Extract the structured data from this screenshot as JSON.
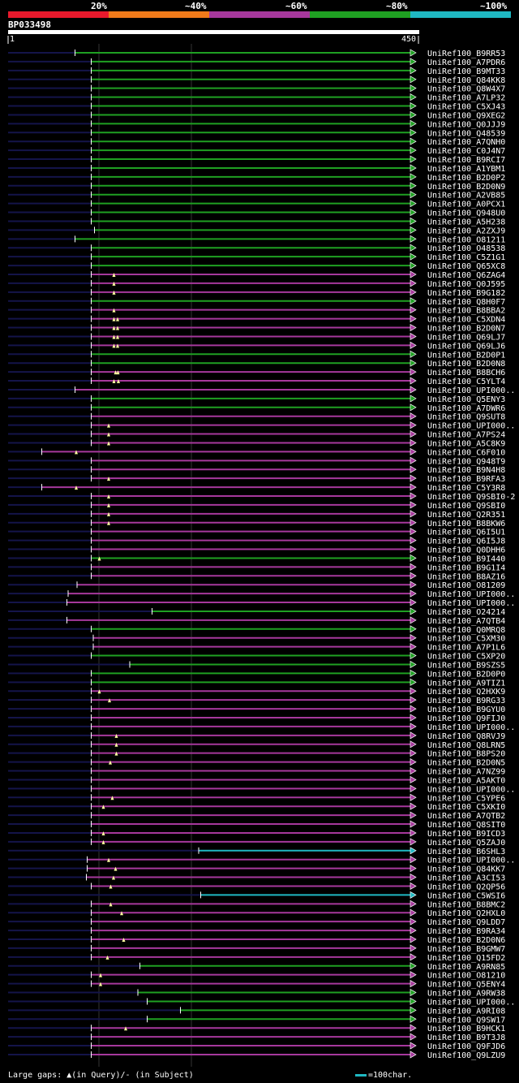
{
  "header": {
    "bands": [
      {
        "label": "20%",
        "color": "#e8192c"
      },
      {
        "label": "~40%",
        "color": "#f07a1a"
      },
      {
        "label": "~60%",
        "color": "#a6389c"
      },
      {
        "label": "~80%",
        "color": "#1fa022"
      },
      {
        "label": "~100%",
        "color": "#1fb8c2"
      }
    ],
    "query_name": "BP033498",
    "ruler_start": "1",
    "ruler_end": "450"
  },
  "footer": {
    "gaps_label": "Large gaps: ▲(in Query)/- (in Subject)",
    "scale_label": "=100char."
  },
  "chart_data": {
    "type": "alignment",
    "query_length": 450,
    "colors": {
      "green": "#1fa022",
      "magenta": "#a6389c",
      "cyan": "#1fb8c2",
      "tail": "#14144a"
    },
    "hits": [
      {
        "name": "UniRef100_B9RR53",
        "start": 165,
        "color": "green",
        "gaps": []
      },
      {
        "name": "UniRef100_A7PDR6",
        "start": 205,
        "color": "green",
        "gaps": []
      },
      {
        "name": "UniRef100_B9MT33",
        "start": 205,
        "color": "green",
        "gaps": []
      },
      {
        "name": "UniRef100_Q84KK8",
        "start": 205,
        "color": "green",
        "gaps": []
      },
      {
        "name": "UniRef100_Q8W4X7",
        "start": 205,
        "color": "green",
        "gaps": []
      },
      {
        "name": "UniRef100_A7LP32",
        "start": 205,
        "color": "green",
        "gaps": []
      },
      {
        "name": "UniRef100_C5XJ43",
        "start": 205,
        "color": "green",
        "gaps": []
      },
      {
        "name": "UniRef100_Q9XEG2",
        "start": 205,
        "color": "green",
        "gaps": []
      },
      {
        "name": "UniRef100_Q0JJJ9",
        "start": 205,
        "color": "green",
        "gaps": []
      },
      {
        "name": "UniRef100_Q48539",
        "start": 205,
        "color": "green",
        "gaps": []
      },
      {
        "name": "UniRef100_A7QNH0",
        "start": 205,
        "color": "green",
        "gaps": []
      },
      {
        "name": "UniRef100_C0J4N7",
        "start": 205,
        "color": "green",
        "gaps": []
      },
      {
        "name": "UniRef100_B9RCI7",
        "start": 205,
        "color": "green",
        "gaps": []
      },
      {
        "name": "UniRef100_A1YBM1",
        "start": 205,
        "color": "green",
        "gaps": []
      },
      {
        "name": "UniRef100_B2D0P2",
        "start": 205,
        "color": "green",
        "gaps": []
      },
      {
        "name": "UniRef100_B2D0N9",
        "start": 205,
        "color": "green",
        "gaps": []
      },
      {
        "name": "UniRef100_A2VB85",
        "start": 205,
        "color": "green",
        "gaps": []
      },
      {
        "name": "UniRef100_A0PCX1",
        "start": 205,
        "color": "green",
        "gaps": []
      },
      {
        "name": "UniRef100_Q948U0",
        "start": 205,
        "color": "green",
        "gaps": []
      },
      {
        "name": "UniRef100_A5H238",
        "start": 205,
        "color": "green",
        "gaps": []
      },
      {
        "name": "UniRef100_A2ZXJ9",
        "start": 213,
        "color": "green",
        "gaps": []
      },
      {
        "name": "UniRef100_O81211",
        "start": 165,
        "color": "green",
        "gaps": []
      },
      {
        "name": "UniRef100_O48538",
        "start": 205,
        "color": "green",
        "gaps": []
      },
      {
        "name": "UniRef100_C5Z1G1",
        "start": 205,
        "color": "green",
        "gaps": []
      },
      {
        "name": "UniRef100_Q65XC8",
        "start": 205,
        "color": "green",
        "gaps": []
      },
      {
        "name": "UniRef100_Q6ZAG4",
        "start": 205,
        "color": "magenta",
        "gaps": [
          261
        ]
      },
      {
        "name": "UniRef100_Q0J595",
        "start": 205,
        "color": "magenta",
        "gaps": [
          261
        ]
      },
      {
        "name": "UniRef100_B9G182",
        "start": 205,
        "color": "magenta",
        "gaps": [
          261
        ]
      },
      {
        "name": "UniRef100_Q8H0F7",
        "start": 205,
        "color": "green",
        "gaps": []
      },
      {
        "name": "UniRef100_B8BBA2",
        "start": 205,
        "color": "magenta",
        "gaps": [
          261
        ]
      },
      {
        "name": "UniRef100_C5XDN4",
        "start": 205,
        "color": "magenta",
        "gaps": [
          261,
          270
        ]
      },
      {
        "name": "UniRef100_B2D0N7",
        "start": 205,
        "color": "magenta",
        "gaps": [
          261,
          270
        ]
      },
      {
        "name": "UniRef100_Q69LJ7",
        "start": 205,
        "color": "magenta",
        "gaps": [
          261,
          270
        ]
      },
      {
        "name": "UniRef100_Q69LJ6",
        "start": 205,
        "color": "magenta",
        "gaps": [
          261,
          270
        ]
      },
      {
        "name": "UniRef100_B2D0P1",
        "start": 205,
        "color": "green",
        "gaps": []
      },
      {
        "name": "UniRef100_B2D0N8",
        "start": 205,
        "color": "green",
        "gaps": []
      },
      {
        "name": "UniRef100_B8BCH6",
        "start": 205,
        "color": "magenta",
        "gaps": [
          265,
          271
        ]
      },
      {
        "name": "UniRef100_C5YLT4",
        "start": 205,
        "color": "magenta",
        "gaps": [
          261,
          272
        ]
      },
      {
        "name": "UniRef100_UPI000..",
        "start": 165,
        "color": "magenta",
        "gaps": []
      },
      {
        "name": "UniRef100_Q5ENY3",
        "start": 205,
        "color": "green",
        "gaps": []
      },
      {
        "name": "UniRef100_A7DWR6",
        "start": 205,
        "color": "green",
        "gaps": []
      },
      {
        "name": "UniRef100_Q9SUT8",
        "start": 205,
        "color": "magenta",
        "gaps": []
      },
      {
        "name": "UniRef100_UPI000..",
        "start": 205,
        "color": "magenta",
        "gaps": [
          248
        ]
      },
      {
        "name": "UniRef100_A7PS24",
        "start": 205,
        "color": "magenta",
        "gaps": [
          248
        ]
      },
      {
        "name": "UniRef100_A5C8K9",
        "start": 205,
        "color": "magenta",
        "gaps": [
          248
        ]
      },
      {
        "name": "UniRef100_C6F010",
        "start": 83,
        "color": "magenta",
        "gaps": [
          168
        ]
      },
      {
        "name": "UniRef100_Q948T9",
        "start": 205,
        "color": "magenta",
        "gaps": []
      },
      {
        "name": "UniRef100_B9N4H8",
        "start": 205,
        "color": "magenta",
        "gaps": []
      },
      {
        "name": "UniRef100_B9RFA3",
        "start": 205,
        "color": "magenta",
        "gaps": [
          248
        ]
      },
      {
        "name": "UniRef100_C5Y3R8",
        "start": 83,
        "color": "magenta",
        "gaps": [
          168
        ]
      },
      {
        "name": "UniRef100_Q9SBI0-2",
        "start": 205,
        "color": "magenta",
        "gaps": [
          248
        ]
      },
      {
        "name": "UniRef100_Q9SBI0",
        "start": 205,
        "color": "magenta",
        "gaps": [
          248
        ]
      },
      {
        "name": "UniRef100_Q2R351",
        "start": 205,
        "color": "magenta",
        "gaps": [
          248
        ]
      },
      {
        "name": "UniRef100_B8BKW6",
        "start": 205,
        "color": "magenta",
        "gaps": [
          248
        ]
      },
      {
        "name": "UniRef100_Q6I5U1",
        "start": 205,
        "color": "magenta",
        "gaps": []
      },
      {
        "name": "UniRef100_Q6I5J8",
        "start": 205,
        "color": "magenta",
        "gaps": []
      },
      {
        "name": "UniRef100_Q0DHH6",
        "start": 205,
        "color": "magenta",
        "gaps": []
      },
      {
        "name": "UniRef100_B9I440",
        "start": 205,
        "color": "green",
        "gaps": [
          225
        ]
      },
      {
        "name": "UniRef100_B9G1I4",
        "start": 205,
        "color": "magenta",
        "gaps": []
      },
      {
        "name": "UniRef100_B8AZ16",
        "start": 205,
        "color": "magenta",
        "gaps": []
      },
      {
        "name": "UniRef100_O81209",
        "start": 170,
        "color": "magenta",
        "gaps": []
      },
      {
        "name": "UniRef100_UPI000..",
        "start": 148,
        "color": "magenta",
        "gaps": []
      },
      {
        "name": "UniRef100_UPI000..",
        "start": 145,
        "color": "magenta",
        "gaps": []
      },
      {
        "name": "UniRef100_O24214",
        "start": 355,
        "color": "green",
        "gaps": []
      },
      {
        "name": "UniRef100_A7QTB4",
        "start": 145,
        "color": "magenta",
        "gaps": []
      },
      {
        "name": "UniRef100_Q0MRQ8",
        "start": 205,
        "color": "green",
        "gaps": []
      },
      {
        "name": "UniRef100_C5XM30",
        "start": 210,
        "color": "magenta",
        "gaps": []
      },
      {
        "name": "UniRef100_A7P1L6",
        "start": 210,
        "color": "magenta",
        "gaps": []
      },
      {
        "name": "UniRef100_C5XP20",
        "start": 205,
        "color": "green",
        "gaps": []
      },
      {
        "name": "UniRef100_B9SZS5",
        "start": 300,
        "color": "green",
        "gaps": []
      },
      {
        "name": "UniRef100_B2D0P0",
        "start": 205,
        "color": "green",
        "gaps": []
      },
      {
        "name": "UniRef100_A9TIZ1",
        "start": 205,
        "color": "green",
        "gaps": []
      },
      {
        "name": "UniRef100_Q2HXK9",
        "start": 205,
        "color": "magenta",
        "gaps": [
          225
        ]
      },
      {
        "name": "UniRef100_B9RG33",
        "start": 205,
        "color": "magenta",
        "gaps": [
          250
        ]
      },
      {
        "name": "UniRef100_B9GYU0",
        "start": 205,
        "color": "magenta",
        "gaps": []
      },
      {
        "name": "UniRef100_Q9FIJ0",
        "start": 205,
        "color": "magenta",
        "gaps": []
      },
      {
        "name": "UniRef100_UPI000..",
        "start": 205,
        "color": "magenta",
        "gaps": []
      },
      {
        "name": "UniRef100_Q8RVJ9",
        "start": 205,
        "color": "magenta",
        "gaps": [
          267
        ]
      },
      {
        "name": "UniRef100_Q8LRN5",
        "start": 205,
        "color": "magenta",
        "gaps": [
          267
        ]
      },
      {
        "name": "UniRef100_B8PS20",
        "start": 205,
        "color": "magenta",
        "gaps": [
          267
        ]
      },
      {
        "name": "UniRef100_B2D0N5",
        "start": 205,
        "color": "magenta",
        "gaps": [
          252
        ]
      },
      {
        "name": "UniRef100_A7NZ99",
        "start": 205,
        "color": "magenta",
        "gaps": []
      },
      {
        "name": "UniRef100_A5AKT0",
        "start": 205,
        "color": "magenta",
        "gaps": []
      },
      {
        "name": "UniRef100_UPI000..",
        "start": 205,
        "color": "magenta",
        "gaps": []
      },
      {
        "name": "UniRef100_C5YPE6",
        "start": 205,
        "color": "magenta",
        "gaps": [
          257
        ]
      },
      {
        "name": "UniRef100_C5XKI0",
        "start": 205,
        "color": "magenta",
        "gaps": [
          235
        ]
      },
      {
        "name": "UniRef100_A7QTB2",
        "start": 205,
        "color": "magenta",
        "gaps": []
      },
      {
        "name": "UniRef100_Q8SIT0",
        "start": 205,
        "color": "magenta",
        "gaps": []
      },
      {
        "name": "UniRef100_B9ICD3",
        "start": 205,
        "color": "magenta",
        "gaps": [
          235
        ]
      },
      {
        "name": "UniRef100_Q5ZAJ0",
        "start": 205,
        "color": "magenta",
        "gaps": [
          235
        ]
      },
      {
        "name": "UniRef100_B6SHL3",
        "start": 470,
        "color": "cyan",
        "gaps": []
      },
      {
        "name": "UniRef100_UPI000..",
        "start": 195,
        "color": "magenta",
        "gaps": [
          248
        ]
      },
      {
        "name": "UniRef100_Q84KK7",
        "start": 195,
        "color": "magenta",
        "gaps": [
          265
        ]
      },
      {
        "name": "UniRef100_A3CI53",
        "start": 193,
        "color": "magenta",
        "gaps": [
          260
        ]
      },
      {
        "name": "UniRef100_Q2QP56",
        "start": 205,
        "color": "magenta",
        "gaps": [
          253
        ]
      },
      {
        "name": "UniRef100_C5WSI6",
        "start": 475,
        "color": "cyan",
        "gaps": []
      },
      {
        "name": "UniRef100_B8BMC2",
        "start": 205,
        "color": "magenta",
        "gaps": [
          253
        ]
      },
      {
        "name": "UniRef100_Q2HXL0",
        "start": 205,
        "color": "magenta",
        "gaps": [
          280
        ]
      },
      {
        "name": "UniRef100_Q9LDD7",
        "start": 205,
        "color": "magenta",
        "gaps": []
      },
      {
        "name": "UniRef100_B9RA34",
        "start": 205,
        "color": "magenta",
        "gaps": []
      },
      {
        "name": "UniRef100_B2D0N6",
        "start": 205,
        "color": "magenta",
        "gaps": [
          285
        ]
      },
      {
        "name": "UniRef100_B9GMW7",
        "start": 205,
        "color": "magenta",
        "gaps": []
      },
      {
        "name": "UniRef100_Q15FD2",
        "start": 205,
        "color": "magenta",
        "gaps": [
          245
        ]
      },
      {
        "name": "UniRef100_A9RN85",
        "start": 325,
        "color": "green",
        "gaps": []
      },
      {
        "name": "UniRef100_O81210",
        "start": 205,
        "color": "magenta",
        "gaps": [
          228
        ]
      },
      {
        "name": "UniRef100_Q5ENY4",
        "start": 205,
        "color": "magenta",
        "gaps": [
          228
        ]
      },
      {
        "name": "UniRef100_A9RW38",
        "start": 320,
        "color": "green",
        "gaps": []
      },
      {
        "name": "UniRef100_UPI000..",
        "start": 343,
        "color": "green",
        "gaps": []
      },
      {
        "name": "UniRef100_A9RI08",
        "start": 425,
        "color": "green",
        "gaps": []
      },
      {
        "name": "UniRef100_Q9SW17",
        "start": 343,
        "color": "green",
        "gaps": []
      },
      {
        "name": "UniRef100_B9HCK1",
        "start": 205,
        "color": "magenta",
        "gaps": [
          290
        ]
      },
      {
        "name": "UniRef100_B9T3J8",
        "start": 205,
        "color": "magenta",
        "gaps": []
      },
      {
        "name": "UniRef100_Q9FJD6",
        "start": 205,
        "color": "magenta",
        "gaps": []
      },
      {
        "name": "UniRef100_Q9LZU9",
        "start": 205,
        "color": "magenta",
        "gaps": []
      }
    ]
  }
}
